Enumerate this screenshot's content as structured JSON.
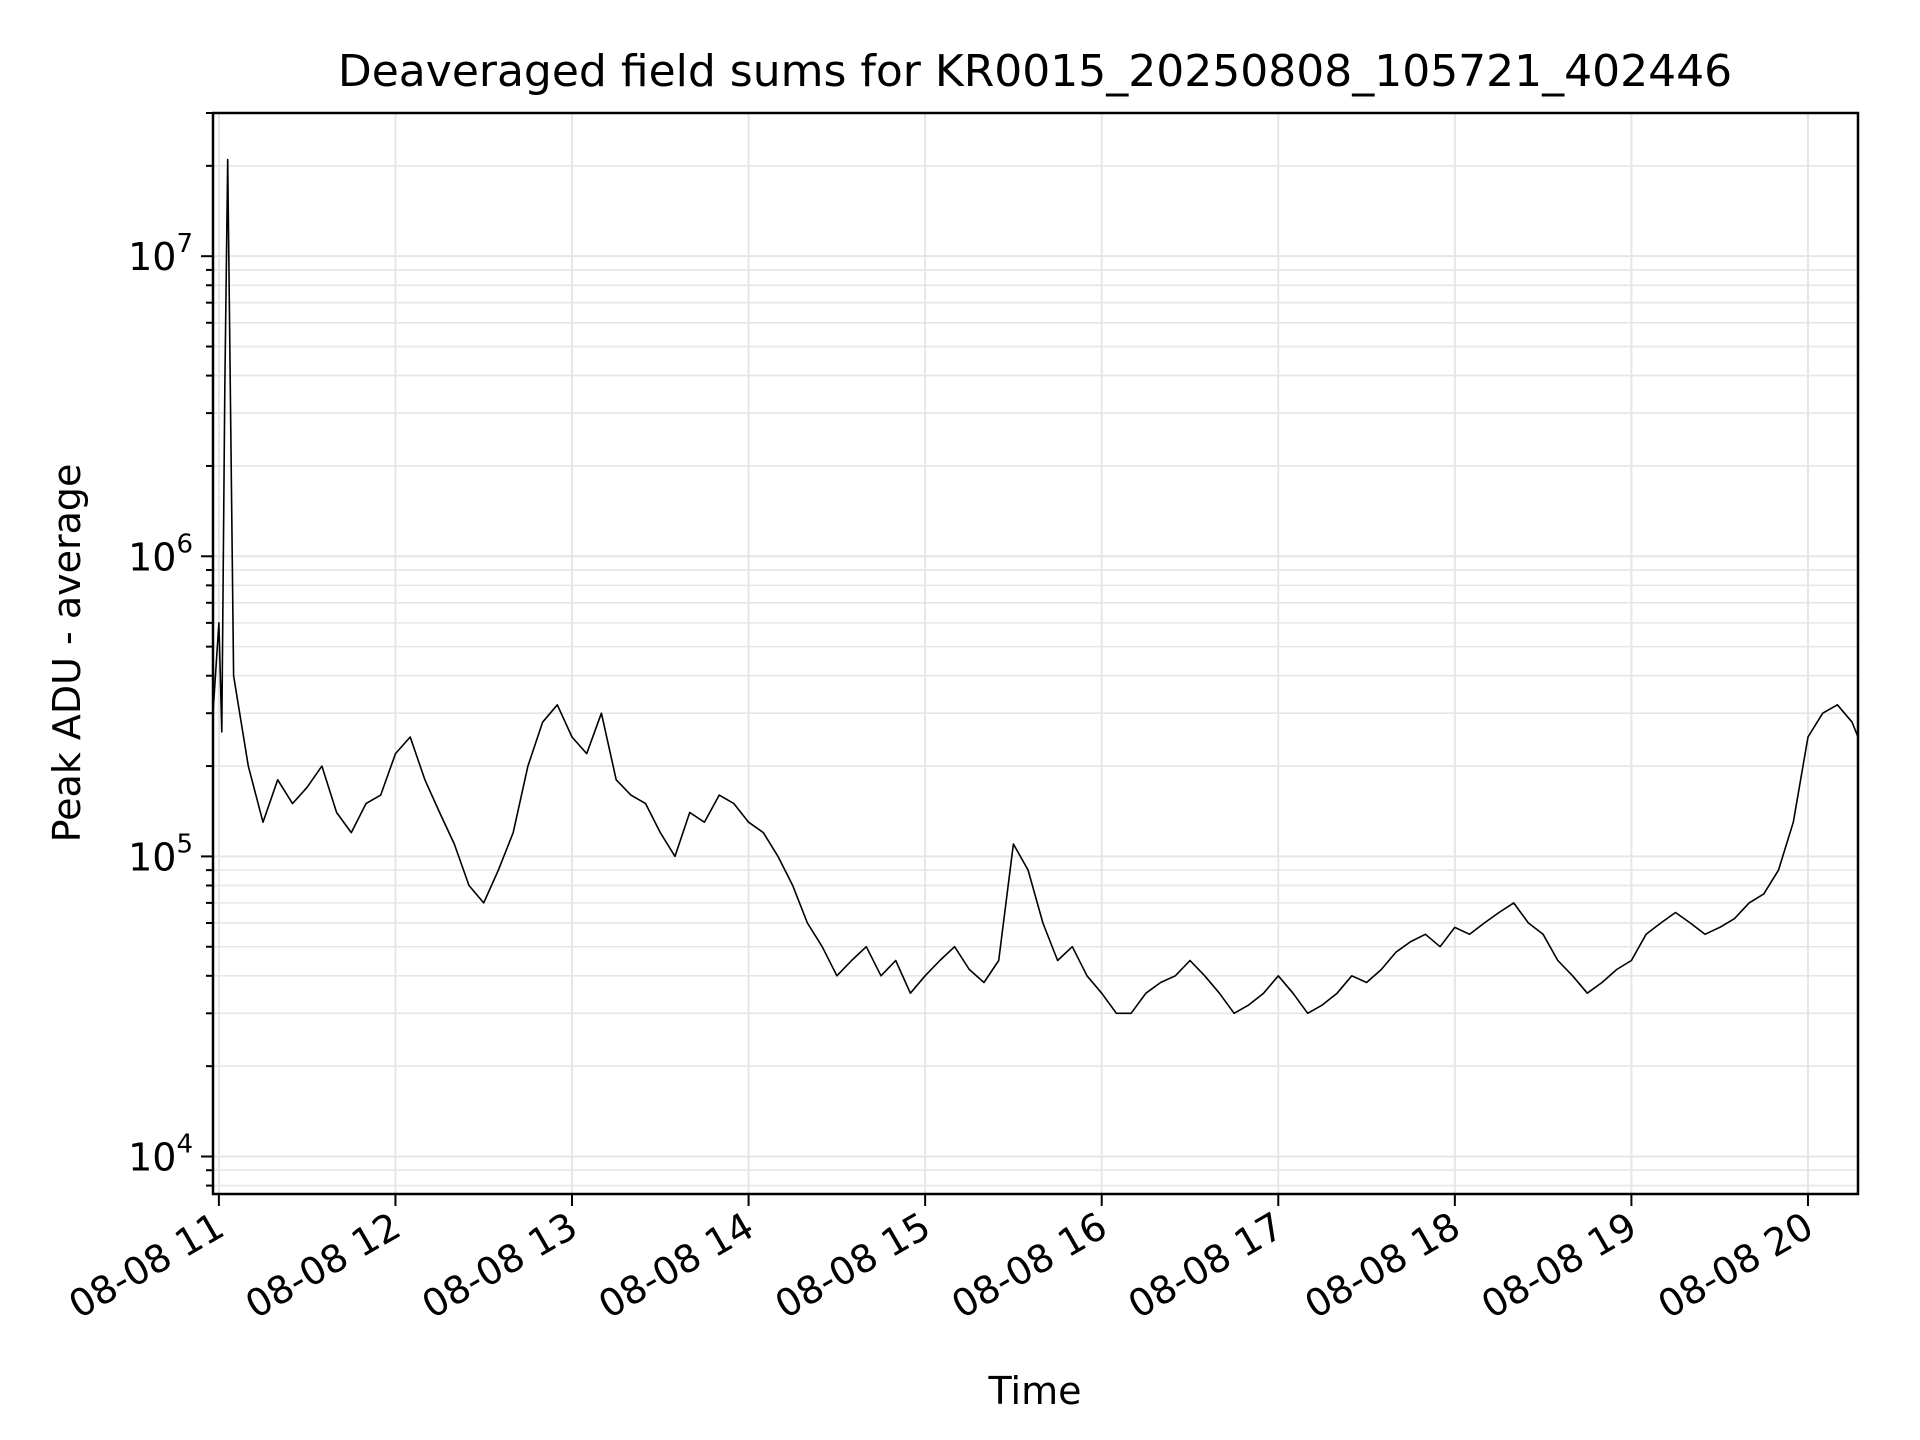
{
  "chart_data": {
    "type": "line",
    "title": "Deaveraged field sums for KR0015_20250808_105721_402446",
    "xlabel": "Time",
    "ylabel": "Peak ADU - average",
    "yscale": "log",
    "ylim": [
      7500,
      30000000
    ],
    "xlim": [
      "2025-08-08 10:58",
      "2025-08-08 20:17"
    ],
    "grid": true,
    "line_color": "#000000",
    "grid_color": "#e6e6e6",
    "x_ticks": [
      "08-08 11",
      "08-08 12",
      "08-08 13",
      "08-08 14",
      "08-08 15",
      "08-08 16",
      "08-08 17",
      "08-08 18",
      "08-08 19",
      "08-08 20"
    ],
    "y_ticks": [
      {
        "base": "10",
        "exp": "4"
      },
      {
        "base": "10",
        "exp": "5"
      },
      {
        "base": "10",
        "exp": "6"
      },
      {
        "base": "10",
        "exp": "7"
      }
    ],
    "series": [
      {
        "x": [
          "2025-08-08 10:58",
          "2025-08-08 11:00",
          "2025-08-08 11:01",
          "2025-08-08 11:02",
          "2025-08-08 11:03",
          "2025-08-08 11:05",
          "2025-08-08 11:10",
          "2025-08-08 11:15",
          "2025-08-08 11:20",
          "2025-08-08 11:25",
          "2025-08-08 11:30",
          "2025-08-08 11:35",
          "2025-08-08 11:40",
          "2025-08-08 11:45",
          "2025-08-08 11:50",
          "2025-08-08 11:55",
          "2025-08-08 12:00",
          "2025-08-08 12:05",
          "2025-08-08 12:10",
          "2025-08-08 12:15",
          "2025-08-08 12:20",
          "2025-08-08 12:25",
          "2025-08-08 12:30",
          "2025-08-08 12:35",
          "2025-08-08 12:40",
          "2025-08-08 12:45",
          "2025-08-08 12:50",
          "2025-08-08 12:55",
          "2025-08-08 13:00",
          "2025-08-08 13:05",
          "2025-08-08 13:10",
          "2025-08-08 13:15",
          "2025-08-08 13:20",
          "2025-08-08 13:25",
          "2025-08-08 13:30",
          "2025-08-08 13:35",
          "2025-08-08 13:40",
          "2025-08-08 13:45",
          "2025-08-08 13:50",
          "2025-08-08 13:55",
          "2025-08-08 14:00",
          "2025-08-08 14:05",
          "2025-08-08 14:10",
          "2025-08-08 14:15",
          "2025-08-08 14:20",
          "2025-08-08 14:25",
          "2025-08-08 14:30",
          "2025-08-08 14:35",
          "2025-08-08 14:40",
          "2025-08-08 14:45",
          "2025-08-08 14:50",
          "2025-08-08 14:55",
          "2025-08-08 15:00",
          "2025-08-08 15:05",
          "2025-08-08 15:10",
          "2025-08-08 15:15",
          "2025-08-08 15:20",
          "2025-08-08 15:25",
          "2025-08-08 15:30",
          "2025-08-08 15:35",
          "2025-08-08 15:40",
          "2025-08-08 15:45",
          "2025-08-08 15:50",
          "2025-08-08 15:55",
          "2025-08-08 16:00",
          "2025-08-08 16:05",
          "2025-08-08 16:10",
          "2025-08-08 16:15",
          "2025-08-08 16:20",
          "2025-08-08 16:25",
          "2025-08-08 16:30",
          "2025-08-08 16:35",
          "2025-08-08 16:40",
          "2025-08-08 16:45",
          "2025-08-08 16:50",
          "2025-08-08 16:55",
          "2025-08-08 17:00",
          "2025-08-08 17:05",
          "2025-08-08 17:10",
          "2025-08-08 17:15",
          "2025-08-08 17:20",
          "2025-08-08 17:25",
          "2025-08-08 17:30",
          "2025-08-08 17:35",
          "2025-08-08 17:40",
          "2025-08-08 17:45",
          "2025-08-08 17:50",
          "2025-08-08 17:55",
          "2025-08-08 18:00",
          "2025-08-08 18:05",
          "2025-08-08 18:10",
          "2025-08-08 18:15",
          "2025-08-08 18:20",
          "2025-08-08 18:25",
          "2025-08-08 18:30",
          "2025-08-08 18:35",
          "2025-08-08 18:40",
          "2025-08-08 18:45",
          "2025-08-08 18:50",
          "2025-08-08 18:55",
          "2025-08-08 19:00",
          "2025-08-08 19:05",
          "2025-08-08 19:10",
          "2025-08-08 19:15",
          "2025-08-08 19:20",
          "2025-08-08 19:25",
          "2025-08-08 19:30",
          "2025-08-08 19:35",
          "2025-08-08 19:40",
          "2025-08-08 19:45",
          "2025-08-08 19:50",
          "2025-08-08 19:55",
          "2025-08-08 20:00",
          "2025-08-08 20:05",
          "2025-08-08 20:10",
          "2025-08-08 20:15",
          "2025-08-08 20:17"
        ],
        "y": [
          300000,
          600000,
          260000,
          3600000,
          21000000,
          400000,
          200000,
          130000,
          180000,
          150000,
          170000,
          200000,
          140000,
          120000,
          150000,
          160000,
          220000,
          250000,
          180000,
          140000,
          110000,
          80000,
          70000,
          90000,
          120000,
          200000,
          280000,
          320000,
          250000,
          220000,
          300000,
          180000,
          160000,
          150000,
          120000,
          100000,
          140000,
          130000,
          160000,
          150000,
          130000,
          120000,
          100000,
          80000,
          60000,
          50000,
          40000,
          45000,
          50000,
          40000,
          45000,
          35000,
          40000,
          45000,
          50000,
          42000,
          38000,
          45000,
          110000,
          90000,
          60000,
          45000,
          50000,
          40000,
          35000,
          30000,
          30000,
          35000,
          38000,
          40000,
          45000,
          40000,
          35000,
          30000,
          32000,
          35000,
          40000,
          35000,
          30000,
          32000,
          35000,
          40000,
          38000,
          42000,
          48000,
          52000,
          55000,
          50000,
          58000,
          55000,
          60000,
          65000,
          70000,
          60000,
          55000,
          45000,
          40000,
          35000,
          38000,
          42000,
          45000,
          55000,
          60000,
          65000,
          60000,
          55000,
          58000,
          62000,
          70000,
          75000,
          90000,
          130000,
          250000,
          300000,
          320000,
          280000,
          250000
        ]
      }
    ]
  }
}
